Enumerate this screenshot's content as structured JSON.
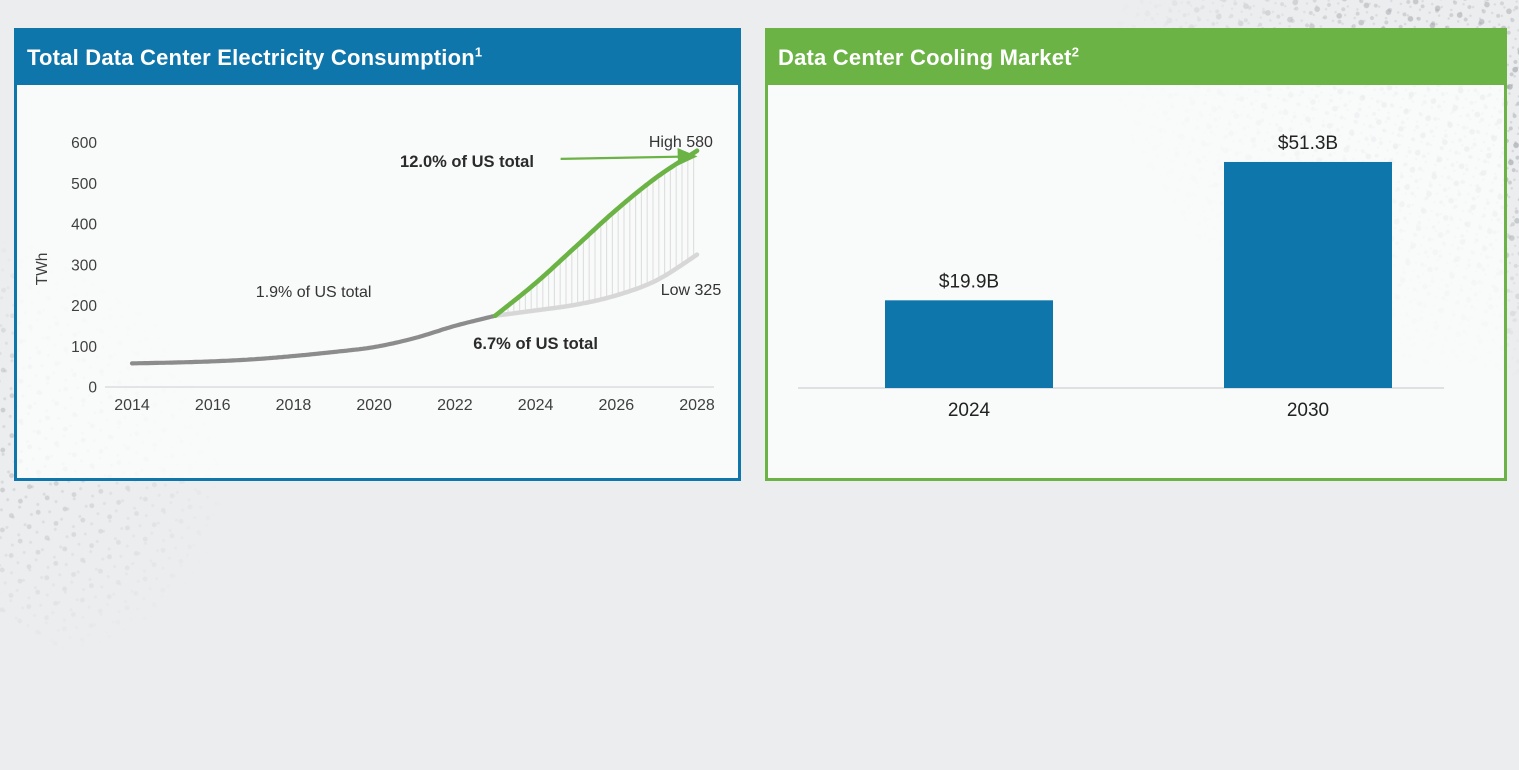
{
  "colors": {
    "blue": "#0e76ab",
    "green": "#6bb345",
    "historical_gray": "#8c8c8c",
    "low_scenario_gray": "#d7d7d7",
    "hatch_gray": "#e0e0e0",
    "axis_gray": "#d6d8d9",
    "page_background": "#ecedee"
  },
  "chart_data": [
    {
      "id": "electricity",
      "type": "line",
      "title": "Total Data Center Electricity Consumption",
      "footnote_marker": "1",
      "ylabel": "TWh",
      "xlabel": "",
      "grid": false,
      "legend": "none",
      "x_ticks": [
        "2014",
        "2016",
        "2018",
        "2020",
        "2022",
        "2024",
        "2026",
        "2028"
      ],
      "y_ticks": [
        0,
        100,
        200,
        300,
        400,
        500,
        600
      ],
      "xlim": [
        2013.6,
        2028.7
      ],
      "ylim": [
        0,
        620
      ],
      "series": [
        {
          "name": "Historical",
          "color": "#8c8c8c",
          "stroke_width": 4.2,
          "x": [
            2014,
            2015,
            2016,
            2017,
            2018,
            2019,
            2020,
            2021,
            2022,
            2023
          ],
          "values": [
            58,
            60,
            63,
            68,
            76,
            86,
            98,
            120,
            150,
            175
          ]
        },
        {
          "name": "High scenario",
          "color": "#6bb345",
          "stroke_width": 4.6,
          "x": [
            2023,
            2024,
            2025,
            2026,
            2027,
            2028
          ],
          "values": [
            175,
            255,
            345,
            435,
            515,
            580
          ]
        },
        {
          "name": "Low scenario",
          "color": "#d7d7d7",
          "stroke_width": 4.5,
          "x": [
            2023,
            2024,
            2025,
            2026,
            2027,
            2028
          ],
          "values": [
            175,
            188,
            202,
            225,
            262,
            325
          ]
        }
      ],
      "band": {
        "between": [
          "High scenario",
          "Low scenario"
        ],
        "style": "vertical-hatch",
        "color": "#e0e0e0"
      },
      "annotations": [
        {
          "text": "1.9% of US total",
          "bold": false,
          "x": 2018.5,
          "y": 221
        },
        {
          "text": "6.7% of US total",
          "bold": true,
          "x": 2024.0,
          "y": 93
        },
        {
          "text": "12.0% of US total",
          "bold": true,
          "x": 2022.3,
          "y": 540
        },
        {
          "text": "High 580",
          "bold": false,
          "x": 2027.6,
          "y": 589
        },
        {
          "text": "Low 325",
          "bold": false,
          "x": 2027.85,
          "y": 226
        }
      ],
      "arrow": {
        "x1": 2024.62,
        "y1": 560,
        "x2": 2027.93,
        "y2": 566,
        "color": "#6bb345"
      }
    },
    {
      "id": "cooling",
      "type": "bar",
      "title": "Data Center Cooling Market",
      "footnote_marker": "2",
      "xlabel": "",
      "ylabel": "",
      "grid": false,
      "ylim": [
        0,
        56
      ],
      "categories": [
        "2024",
        "2030"
      ],
      "values": [
        19.9,
        51.3
      ],
      "value_labels": [
        "$19.9B",
        "$51.3B"
      ],
      "bar_color": "#0e76ab"
    }
  ]
}
